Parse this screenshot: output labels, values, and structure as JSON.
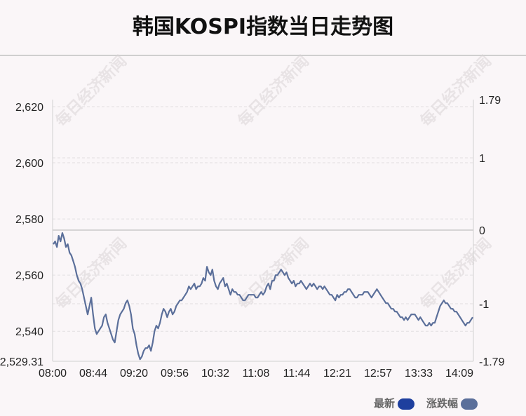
{
  "chart_data": {
    "type": "line",
    "title": "韩国KOSPI指数当日走势图",
    "x_ticks": [
      "08:00",
      "08:44",
      "09:20",
      "09:56",
      "10:32",
      "11:08",
      "11:44",
      "12:21",
      "12:57",
      "13:33",
      "14:09"
    ],
    "y_left": {
      "ticks": [
        "2,620",
        "2,600",
        "2,580",
        "2,560",
        "2,540"
      ],
      "min_label": "2,529.31",
      "range": [
        2529.31,
        2623
      ]
    },
    "y_right": {
      "ticks": [
        "1.79",
        "1",
        "0",
        "-1",
        "-1.79"
      ],
      "zero_line": "0"
    },
    "grid": true,
    "legend_position": "bottom-right",
    "series": [
      {
        "name": "最新",
        "color": "#1e3f9e",
        "values": [
          2571,
          2572,
          2570,
          2574,
          2572,
          2575,
          2573,
          2570,
          2571,
          2568,
          2567,
          2565,
          2563,
          2560,
          2558,
          2557,
          2555,
          2552,
          2549,
          2546,
          2549,
          2552,
          2546,
          2541,
          2539,
          2540,
          2541,
          2542,
          2545,
          2546,
          2543,
          2541,
          2539,
          2537,
          2536,
          2540,
          2544,
          2546,
          2547,
          2548,
          2550,
          2551,
          2549,
          2546,
          2541,
          2539,
          2535,
          2532,
          2530,
          2531,
          2533,
          2534,
          2534,
          2535,
          2533,
          2536,
          2540,
          2542,
          2541,
          2543,
          2546,
          2548,
          2547,
          2545,
          2547,
          2548,
          2546,
          2547,
          2549,
          2550,
          2551,
          2551,
          2552,
          2553,
          2554,
          2556,
          2555,
          2556,
          2557,
          2555,
          2556,
          2556,
          2557,
          2559,
          2558,
          2563,
          2561,
          2560,
          2562,
          2558,
          2556,
          2555,
          2557,
          2558,
          2559,
          2556,
          2557,
          2555,
          2553,
          2555,
          2554,
          2554,
          2553,
          2553,
          2552,
          2551,
          2551,
          2552,
          2553,
          2553,
          2553,
          2553,
          2552,
          2552,
          2553,
          2554,
          2553,
          2554,
          2556,
          2557,
          2555,
          2558,
          2558,
          2560,
          2560,
          2561,
          2562,
          2561,
          2560,
          2561,
          2559,
          2558,
          2557,
          2558,
          2556,
          2557,
          2557,
          2558,
          2557,
          2556,
          2555,
          2556,
          2557,
          2556,
          2557,
          2556,
          2555,
          2556,
          2556,
          2555,
          2556,
          2555,
          2554,
          2553,
          2553,
          2552,
          2551,
          2553,
          2552,
          2553,
          2553,
          2554,
          2554,
          2555,
          2555,
          2554,
          2553,
          2552,
          2552,
          2553,
          2553,
          2553,
          2554,
          2554,
          2554,
          2553,
          2552,
          2553,
          2554,
          2555,
          2554,
          2553,
          2552,
          2551,
          2550,
          2550,
          2549,
          2548,
          2548,
          2547,
          2547,
          2546,
          2545,
          2545,
          2544,
          2545,
          2544,
          2545,
          2546,
          2546,
          2546,
          2545,
          2544,
          2545,
          2544,
          2543,
          2542,
          2542,
          2543,
          2542,
          2543,
          2543,
          2545,
          2547,
          2549,
          2550,
          2551,
          2550,
          2550,
          2549,
          2548,
          2548,
          2547,
          2547,
          2546,
          2545,
          2544,
          2543,
          2542,
          2543,
          2543,
          2544,
          2545
        ]
      },
      {
        "name": "涨跌幅",
        "color": "#5b6f9a"
      }
    ]
  },
  "watermark": "每日经济新闻"
}
